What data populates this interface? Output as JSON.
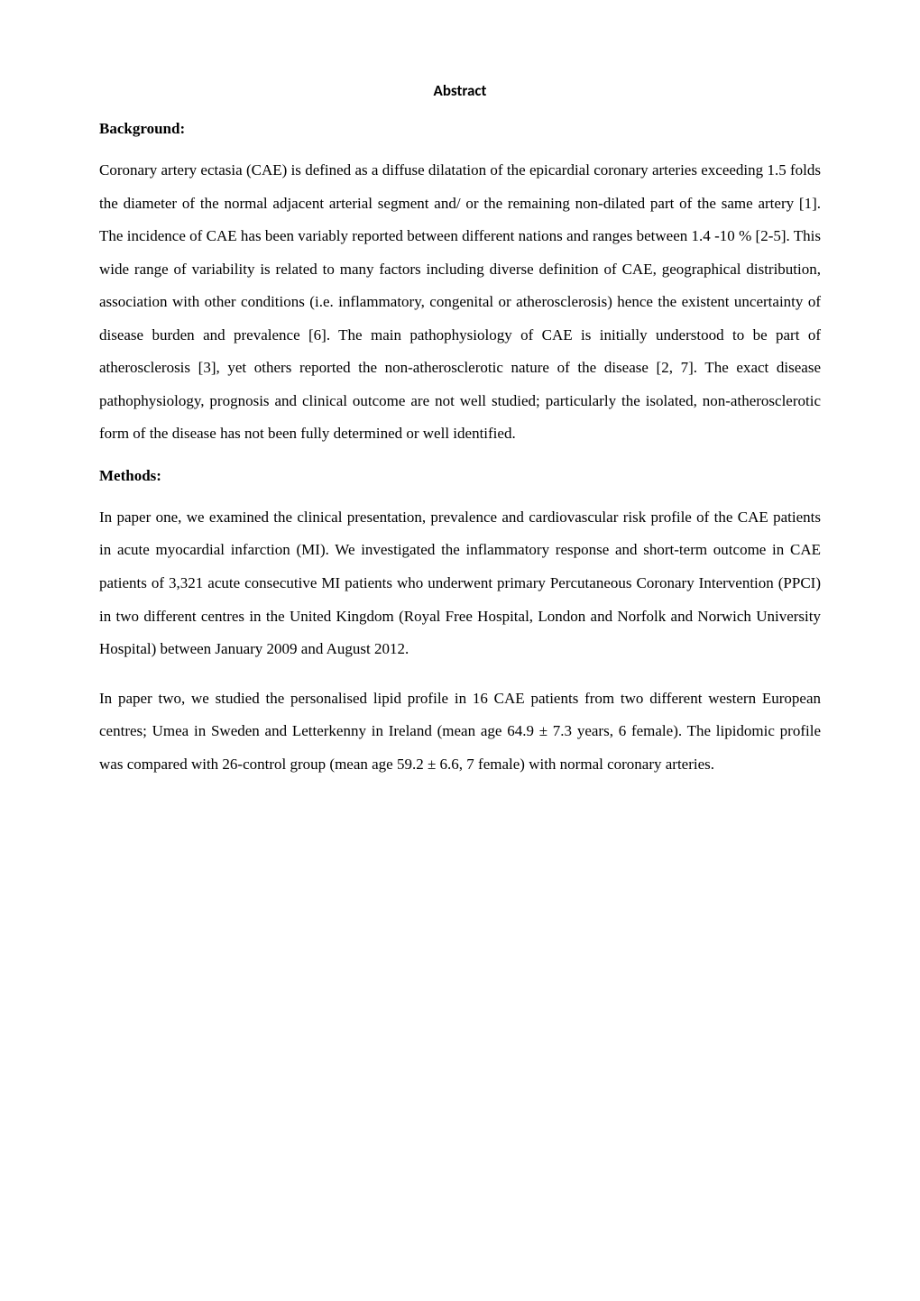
{
  "title": "Abstract",
  "sections": {
    "background": {
      "heading": "Background:",
      "paragraph": "Coronary artery ectasia (CAE) is defined as a diffuse dilatation of the epicardial coronary arteries exceeding 1.5 folds the diameter of the normal adjacent arterial segment and/ or the remaining non-dilated part of the same artery [1]. The incidence of CAE has been variably reported between different nations and ranges between 1.4 -10 % [2-5]. This wide range of variability is related to many factors including diverse definition of CAE, geographical distribution, association with other conditions (i.e. inflammatory, congenital or atherosclerosis) hence the existent uncertainty of disease burden and prevalence [6]. The main pathophysiology of CAE is initially understood to be part of atherosclerosis [3], yet others reported the non-atherosclerotic nature of the disease [2, 7]. The exact disease pathophysiology, prognosis and clinical outcome are not well studied; particularly the isolated, non-atherosclerotic form of the disease has not been fully determined or well identified."
    },
    "methods": {
      "heading": "Methods:",
      "paragraph1": "In paper one, we examined the clinical presentation, prevalence and cardiovascular risk profile of the CAE patients in acute myocardial infarction (MI). We investigated the inflammatory response and short-term outcome in CAE patients of 3,321 acute consecutive MI patients who underwent primary Percutaneous Coronary Intervention (PPCI) in two different centres in the United Kingdom (Royal Free Hospital, London and Norfolk and Norwich University Hospital) between January 2009 and August 2012.",
      "paragraph2": "In paper two, we studied the personalised lipid profile in 16 CAE patients from two different western European centres; Umea in Sweden and Letterkenny in Ireland (mean age 64.9 ± 7.3 years, 6 female). The lipidomic profile was compared with 26-control group (mean age 59.2 ± 6.6, 7 female) with normal coronary arteries."
    }
  }
}
